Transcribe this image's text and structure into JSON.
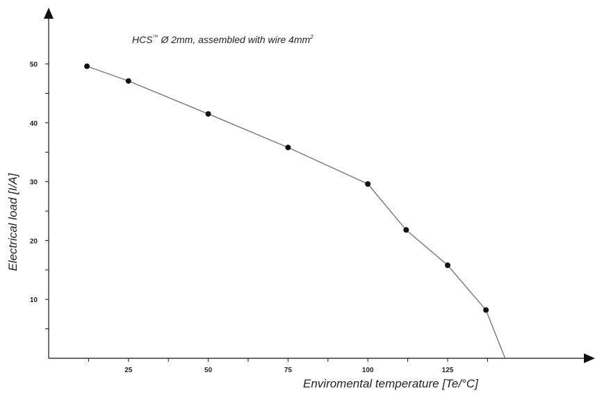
{
  "chart_data": {
    "type": "line",
    "title_main": "HCS",
    "title_tm": "™",
    "title_rest": " Ø 2mm, assembled with wire 4mm",
    "title_sup": "2",
    "xlabel": "Enviromental temperature [Te/°C]",
    "ylabel": "Electrical load [I/A]",
    "xlim": [
      0,
      125
    ],
    "ylim": [
      0,
      50
    ],
    "x_ticks": [
      25,
      50,
      75,
      100,
      125
    ],
    "y_ticks": [
      10,
      20,
      30,
      40,
      50
    ],
    "grid": false,
    "series": [
      {
        "x": [
          12,
          25,
          50,
          75,
          100,
          112,
          125,
          137,
          143
        ],
        "y": [
          49.6,
          47.1,
          41.5,
          35.8,
          29.6,
          21.8,
          15.8,
          8.2,
          0
        ],
        "markers": [
          true,
          true,
          true,
          true,
          true,
          true,
          true,
          true,
          false
        ]
      }
    ],
    "colors": {
      "line": "#777777",
      "marker": "#111111",
      "axis": "#111111"
    }
  }
}
